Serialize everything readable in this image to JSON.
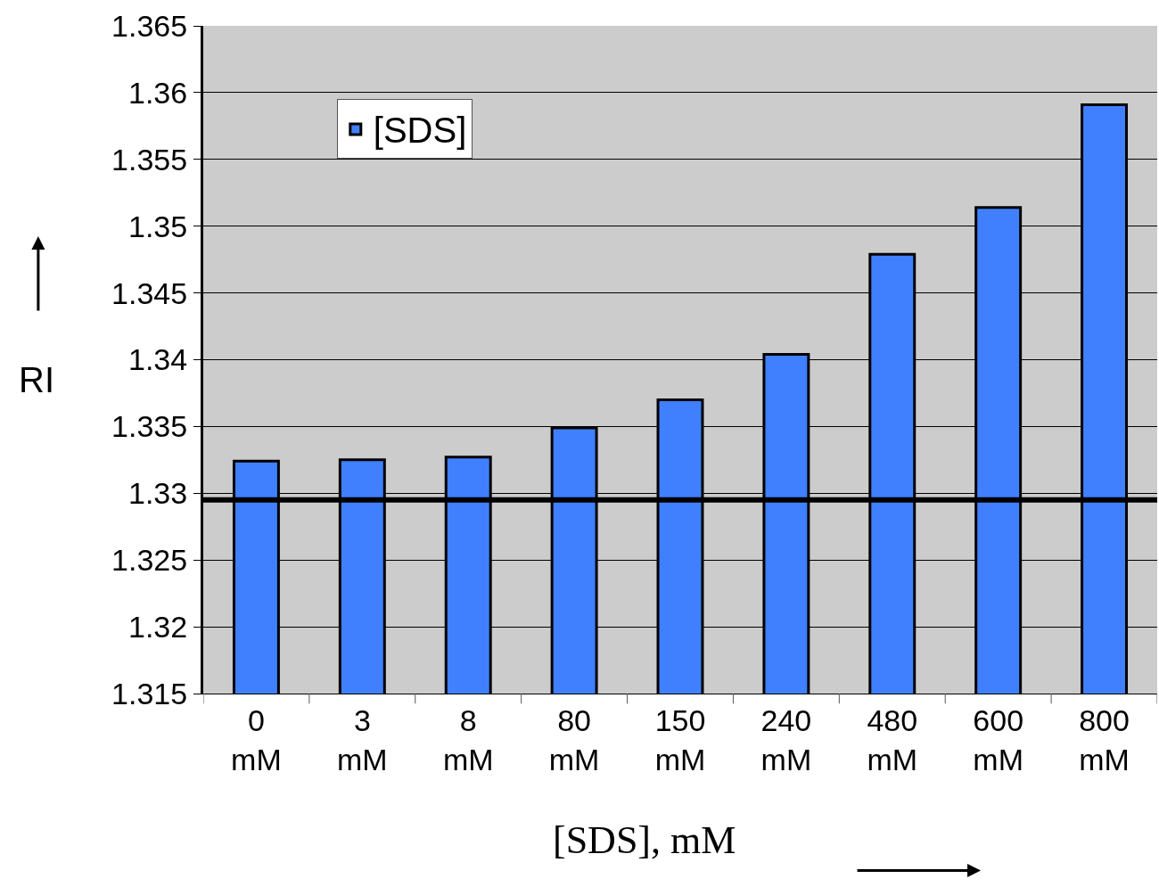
{
  "chart_data": {
    "type": "bar",
    "xlabel": "[SDS], mM",
    "ylabel": "RI",
    "categories": [
      "0 mM",
      "3 mM",
      "8 mM",
      "80 mM",
      "150 mM",
      "240 mM",
      "480 mM",
      "600 mM",
      "800 mM"
    ],
    "series": [
      {
        "name": "[SDS]",
        "color": "#4080ff",
        "values": [
          1.3324,
          1.3325,
          1.3327,
          1.3349,
          1.337,
          1.3404,
          1.3479,
          1.3514,
          1.3591
        ]
      }
    ],
    "ylim": [
      1.315,
      1.365
    ],
    "yticks": [
      1.315,
      1.32,
      1.325,
      1.33,
      1.335,
      1.34,
      1.345,
      1.35,
      1.355,
      1.36,
      1.365
    ],
    "ref_lines": [
      {
        "axis": "y",
        "value": 1.3295,
        "color": "#000000"
      }
    ],
    "grid": "y",
    "legend": "top left"
  }
}
